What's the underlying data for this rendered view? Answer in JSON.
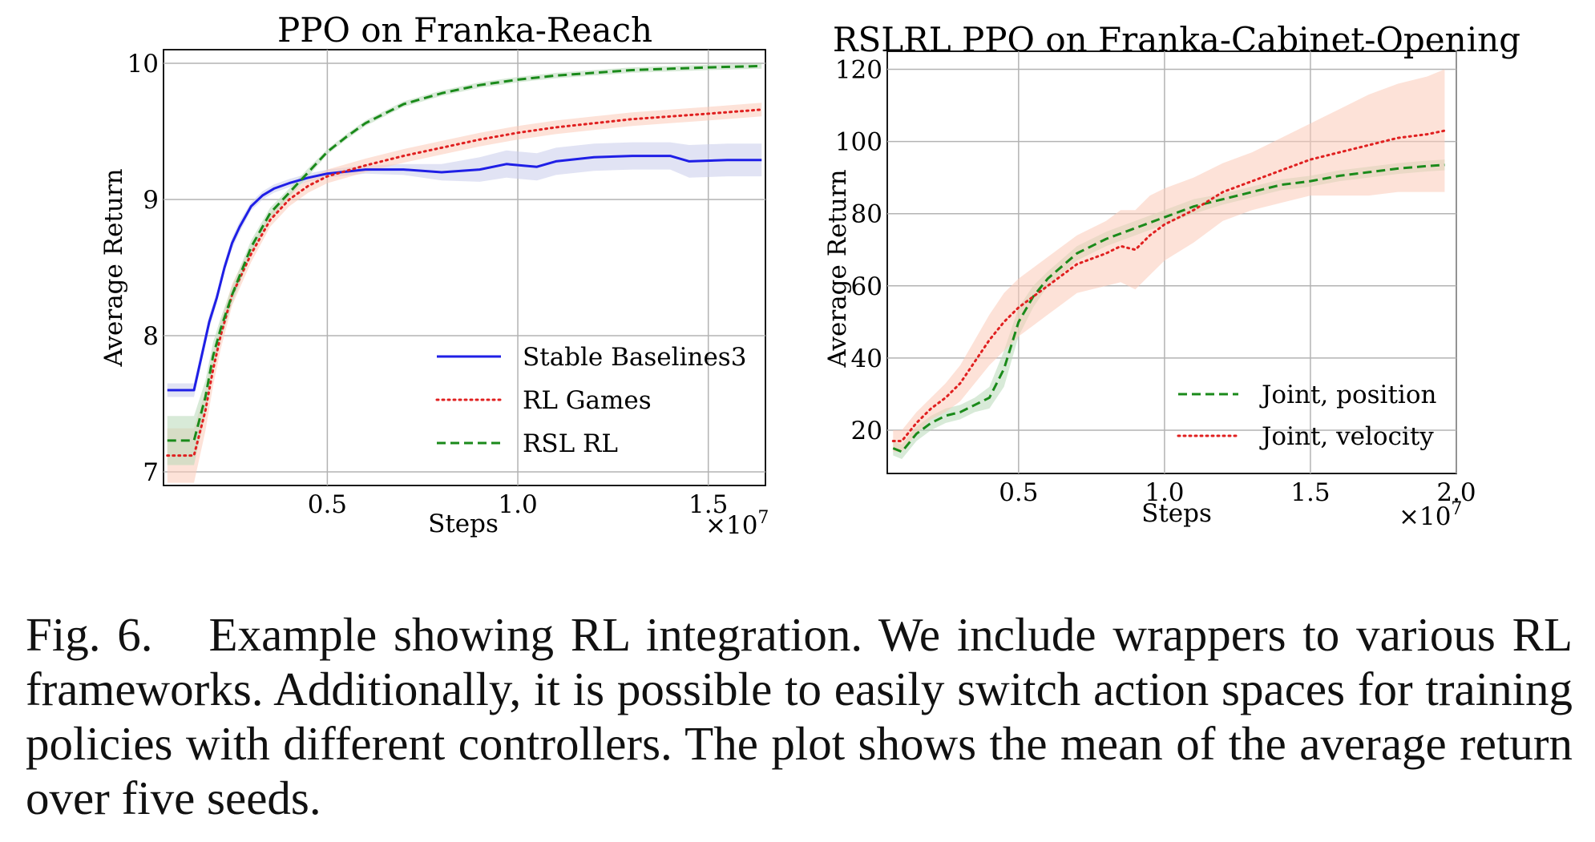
{
  "chart_data": [
    {
      "type": "line",
      "title": "PPO on Franka-Reach",
      "xlabel": "Steps",
      "ylabel": "Average Return",
      "x_multiplier": "×10",
      "x_multiplier_exp": "7",
      "xlim": [
        0.07,
        1.65
      ],
      "ylim": [
        6.9,
        10.1
      ],
      "xticks": [
        0.5,
        1.0,
        1.5
      ],
      "xtick_labels": [
        "0.5",
        "1.0",
        "1.5"
      ],
      "yticks": [
        7,
        8,
        9,
        10
      ],
      "ytick_labels": [
        "7",
        "8",
        "9",
        "10"
      ],
      "grid": true,
      "legend_position": "bottom-right",
      "series": [
        {
          "name": "Stable Baselines3",
          "color": "#1f1fe6",
          "style": "solid",
          "x": [
            0.08,
            0.15,
            0.17,
            0.19,
            0.21,
            0.23,
            0.25,
            0.27,
            0.3,
            0.33,
            0.36,
            0.4,
            0.45,
            0.5,
            0.6,
            0.7,
            0.8,
            0.9,
            0.97,
            1.05,
            1.1,
            1.2,
            1.3,
            1.4,
            1.45,
            1.55,
            1.64
          ],
          "y": [
            7.6,
            7.6,
            7.85,
            8.1,
            8.28,
            8.5,
            8.68,
            8.8,
            8.95,
            9.03,
            9.08,
            9.12,
            9.16,
            9.19,
            9.22,
            9.22,
            9.2,
            9.22,
            9.26,
            9.24,
            9.28,
            9.31,
            9.32,
            9.32,
            9.28,
            9.29,
            9.29
          ],
          "band": [
            0.05,
            0.05,
            0.05,
            0.05,
            0.04,
            0.04,
            0.04,
            0.04,
            0.03,
            0.03,
            0.03,
            0.03,
            0.03,
            0.03,
            0.03,
            0.04,
            0.06,
            0.09,
            0.1,
            0.1,
            0.1,
            0.1,
            0.1,
            0.1,
            0.12,
            0.12,
            0.12
          ]
        },
        {
          "name": "RL Games",
          "color": "#e02020",
          "style": "dotted",
          "x": [
            0.08,
            0.15,
            0.18,
            0.2,
            0.22,
            0.25,
            0.3,
            0.35,
            0.4,
            0.45,
            0.5,
            0.6,
            0.7,
            0.8,
            0.9,
            1.0,
            1.1,
            1.2,
            1.3,
            1.4,
            1.5,
            1.64
          ],
          "y": [
            7.12,
            7.12,
            7.45,
            7.75,
            8.0,
            8.3,
            8.6,
            8.85,
            9.0,
            9.1,
            9.17,
            9.25,
            9.32,
            9.38,
            9.44,
            9.49,
            9.53,
            9.56,
            9.59,
            9.61,
            9.63,
            9.66
          ],
          "band": [
            0.2,
            0.2,
            0.15,
            0.12,
            0.1,
            0.08,
            0.06,
            0.05,
            0.05,
            0.05,
            0.05,
            0.05,
            0.05,
            0.05,
            0.05,
            0.05,
            0.05,
            0.05,
            0.05,
            0.05,
            0.05,
            0.05
          ]
        },
        {
          "name": "RSL RL",
          "color": "#1a8a1a",
          "style": "dashed",
          "x": [
            0.08,
            0.15,
            0.18,
            0.2,
            0.22,
            0.25,
            0.3,
            0.35,
            0.4,
            0.45,
            0.5,
            0.55,
            0.6,
            0.7,
            0.8,
            0.9,
            1.0,
            1.1,
            1.2,
            1.3,
            1.4,
            1.5,
            1.64
          ],
          "y": [
            7.23,
            7.23,
            7.55,
            7.85,
            8.05,
            8.3,
            8.65,
            8.9,
            9.05,
            9.2,
            9.35,
            9.46,
            9.56,
            9.7,
            9.78,
            9.84,
            9.88,
            9.91,
            9.93,
            9.95,
            9.96,
            9.97,
            9.98
          ],
          "band": [
            0.18,
            0.18,
            0.12,
            0.1,
            0.08,
            0.06,
            0.05,
            0.04,
            0.03,
            0.03,
            0.02,
            0.02,
            0.02,
            0.02,
            0.02,
            0.02,
            0.02,
            0.02,
            0.02,
            0.02,
            0.02,
            0.02,
            0.02
          ]
        }
      ]
    },
    {
      "type": "line",
      "title": "RSLRL PPO on Franka-Cabinet-Opening",
      "xlabel": "Steps",
      "ylabel": "Average Return",
      "x_multiplier": "×10",
      "x_multiplier_exp": "7",
      "xlim": [
        0.05,
        2.0
      ],
      "ylim": [
        8,
        125
      ],
      "xticks": [
        0.5,
        1.0,
        1.5,
        2.0
      ],
      "xtick_labels": [
        "0.5",
        "1.0",
        "1.5",
        "2.0"
      ],
      "yticks": [
        20,
        40,
        60,
        80,
        100,
        120
      ],
      "ytick_labels": [
        "20",
        "40",
        "60",
        "80",
        "100",
        "120"
      ],
      "grid": true,
      "legend_position": "bottom-right",
      "series": [
        {
          "name": "Joint, position",
          "color": "#1a8a1a",
          "style": "dashed",
          "x": [
            0.07,
            0.1,
            0.15,
            0.2,
            0.25,
            0.3,
            0.35,
            0.4,
            0.45,
            0.5,
            0.55,
            0.6,
            0.7,
            0.8,
            0.9,
            1.0,
            1.1,
            1.2,
            1.3,
            1.4,
            1.5,
            1.6,
            1.7,
            1.8,
            1.9,
            1.96
          ],
          "y": [
            15,
            14,
            19,
            22,
            24,
            25,
            27,
            29,
            37,
            50,
            57,
            62,
            69,
            73,
            76,
            79,
            82,
            84,
            86,
            88,
            89,
            90.5,
            91.5,
            92.5,
            93.2,
            93.5
          ],
          "band": [
            2,
            2,
            2,
            2,
            2,
            2,
            2,
            3,
            5,
            4,
            3,
            2,
            2,
            2,
            2,
            2,
            2,
            1.5,
            1.5,
            1.5,
            1.5,
            1.5,
            1.5,
            1.5,
            1.5,
            1.5
          ]
        },
        {
          "name": "Joint, velocity",
          "color": "#e02020",
          "style": "dotted",
          "x": [
            0.07,
            0.1,
            0.15,
            0.2,
            0.25,
            0.3,
            0.35,
            0.4,
            0.45,
            0.5,
            0.55,
            0.6,
            0.7,
            0.8,
            0.85,
            0.9,
            0.95,
            1.0,
            1.1,
            1.2,
            1.3,
            1.4,
            1.5,
            1.6,
            1.7,
            1.8,
            1.9,
            1.96
          ],
          "y": [
            17,
            17,
            22,
            26,
            29,
            33,
            39,
            45,
            50,
            54,
            57,
            60,
            66,
            69,
            71,
            70,
            74,
            77,
            81,
            86,
            89,
            92,
            95,
            97,
            99,
            101,
            102,
            103
          ],
          "band": [
            3,
            3,
            3,
            3,
            4,
            5,
            6,
            7,
            8,
            8,
            8,
            8,
            8,
            9,
            10,
            11,
            11,
            10,
            9,
            8,
            8,
            9,
            10,
            12,
            14,
            15,
            16,
            17
          ]
        }
      ]
    }
  ],
  "caption": {
    "label": "Fig. 6.",
    "text": "Example showing RL integration. We include wrappers to various RL frameworks. Additionally, it is possible to easily switch action spaces for training policies with different controllers. The plot shows the mean of the average return over five seeds."
  }
}
